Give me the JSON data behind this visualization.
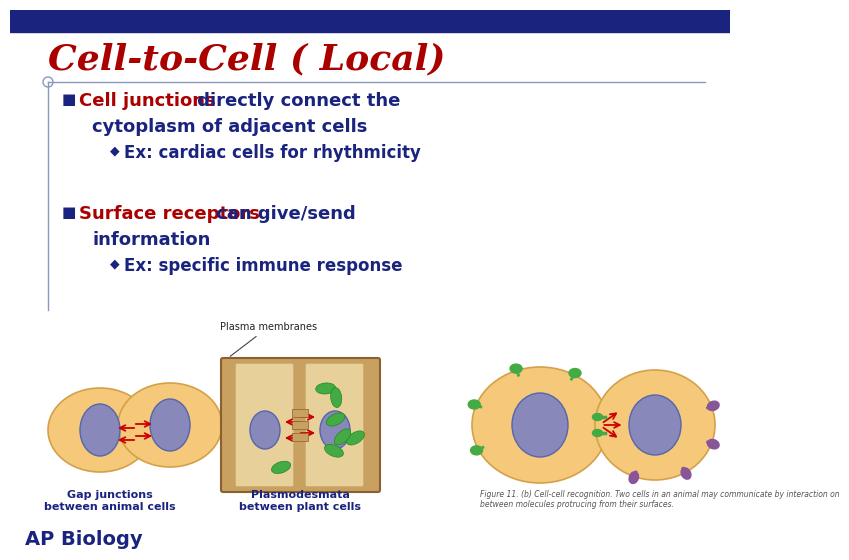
{
  "title": "Cell-to-Cell ( Local)",
  "title_color": "#aa0000",
  "title_fontsize": 26,
  "bg_color": "#ffffff",
  "header_color": "#1a237e",
  "line_color": "#8899bb",
  "red_color": "#aa0000",
  "dark_blue": "#1a237e",
  "body_fontsize": 13,
  "sub_fontsize": 12,
  "bullet1_red": "Cell junctions",
  "bullet1_cont": " directly connect the",
  "bullet1_line2": "cytoplasm of adjacent cells",
  "sub1": "Ex: cardiac cells for rhythmicity",
  "bullet2_red": "Surface receptors",
  "bullet2_cont": " can give/send",
  "bullet2_line2": "information",
  "sub2": "Ex: specific immune response",
  "label1": "Gap junctions\nbetween animal cells",
  "label2": "Plasmodesmata\nbetween plant cells",
  "plasma_label": "Plasma membranes",
  "figure_label": "Figure 11. (b) Cell-cell recognition. Two cells in an animal may communicate by interaction on\nbetween molecules protrucing from their surfaces.",
  "ap_label": "AP Biology",
  "ap_color": "#1a237e",
  "ap_fontsize": 14,
  "cell_fill": "#f5c87a",
  "cell_edge": "#d4a04a",
  "nucleus_fill": "#8888bb",
  "nucleus_edge": "#5566aa",
  "plant_box_fill": "#c8a060",
  "plant_inner_fill": "#e8d09a",
  "green_color": "#44aa44",
  "purple_color": "#885599",
  "arrow_color": "#cc0000"
}
